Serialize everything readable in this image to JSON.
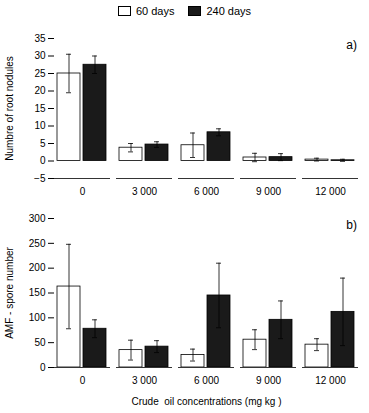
{
  "chart_data": [
    {
      "type": "bar",
      "title": "a)",
      "ylabel": "Numbre of root nodules",
      "categories": [
        "0",
        "3 000",
        "6 000",
        "9 000",
        "12 000"
      ],
      "series": [
        {
          "name": "60 days",
          "color": "#ffffff",
          "values": [
            25,
            3.8,
            4.5,
            1.0,
            0.4
          ],
          "errors": [
            5.5,
            1.2,
            3.5,
            1.2,
            0.4
          ]
        },
        {
          "name": "240 days",
          "color": "#1a1a1a",
          "values": [
            27.5,
            4.7,
            8.2,
            1.1,
            0.2
          ],
          "errors": [
            2.5,
            0.8,
            1.0,
            1.0,
            0.3
          ]
        }
      ],
      "ylim": [
        -5,
        35
      ],
      "yticks": [
        -5,
        0,
        5,
        10,
        15,
        20,
        25,
        30,
        35
      ],
      "legend": "top"
    },
    {
      "type": "bar",
      "title": "b)",
      "ylabel": "AMF - spore number",
      "xlabel": "Crude  oil concentrations (mg kg )",
      "categories": [
        "0",
        "3 000",
        "6 000",
        "9 000",
        "12 000"
      ],
      "series": [
        {
          "name": "60 days",
          "color": "#ffffff",
          "values": [
            163,
            35,
            25,
            56,
            46
          ],
          "errors": [
            85,
            20,
            12,
            20,
            12
          ]
        },
        {
          "name": "240 days",
          "color": "#1a1a1a",
          "values": [
            78,
            42,
            145,
            96,
            112
          ],
          "errors": [
            18,
            12,
            65,
            38,
            68
          ]
        }
      ],
      "ylim": [
        0,
        300
      ],
      "yticks": [
        0,
        50,
        100,
        150,
        200,
        250,
        300
      ]
    }
  ]
}
